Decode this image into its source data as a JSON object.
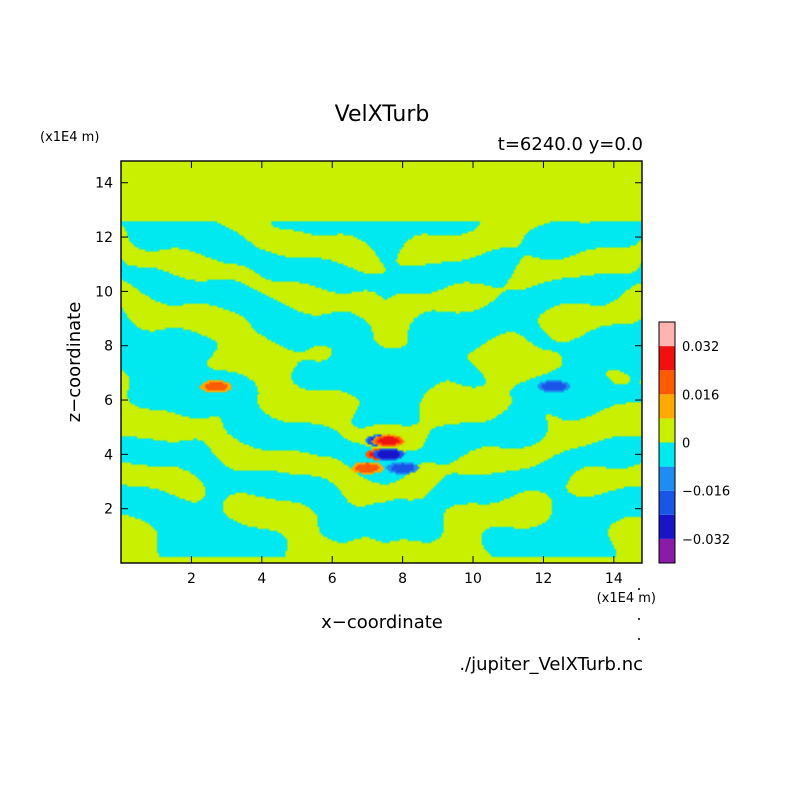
{
  "chart_data": {
    "type": "heatmap",
    "title": "VelXTurb",
    "subtitle": "t=6240.0 y=0.0",
    "xlabel": "x−coordinate",
    "ylabel": "z−coordinate",
    "x_unit_label": "(x1E4 m)",
    "y_unit_label": "(x1E4 m)",
    "source_label": "./jupiter_VelXTurb.nc",
    "xlim": [
      0,
      14.8
    ],
    "ylim": [
      0,
      14.8
    ],
    "x_ticks": [
      2,
      4,
      6,
      8,
      10,
      12,
      14
    ],
    "y_ticks": [
      2,
      4,
      6,
      8,
      10,
      12,
      14
    ],
    "colorbar": {
      "levels": [
        -0.04,
        -0.032,
        -0.024,
        -0.016,
        -0.008,
        0,
        0.008,
        0.016,
        0.024,
        0.032,
        0.04
      ],
      "colors": [
        "#8a1aa8",
        "#1a14c8",
        "#1a55e8",
        "#1e8cf0",
        "#00e8f0",
        "#c8f000",
        "#ffaa00",
        "#ff5a00",
        "#f01010",
        "#ffb4b4"
      ],
      "tick_labels": [
        "-0.032",
        "-0.016",
        "0",
        "0.016",
        "0.032"
      ],
      "tick_values": [
        -0.032,
        -0.016,
        0,
        0.016,
        0.032
      ]
    },
    "field": {
      "background_value": 0.004,
      "turbulent_region_z": [
        0.2,
        12.6
      ],
      "blobs": [
        {
          "x": 2.7,
          "z": 6.5,
          "value": 0.02
        },
        {
          "x": 12.3,
          "z": 6.5,
          "value": -0.02
        },
        {
          "x": 7.0,
          "z": 3.5,
          "value": 0.02
        },
        {
          "x": 8.0,
          "z": 3.5,
          "value": -0.02
        },
        {
          "x": 7.4,
          "z": 4.0,
          "value": 0.03
        },
        {
          "x": 7.6,
          "z": 4.0,
          "value": -0.03
        },
        {
          "x": 7.4,
          "z": 4.5,
          "value": -0.028
        },
        {
          "x": 7.6,
          "z": 4.5,
          "value": 0.026
        }
      ]
    }
  }
}
